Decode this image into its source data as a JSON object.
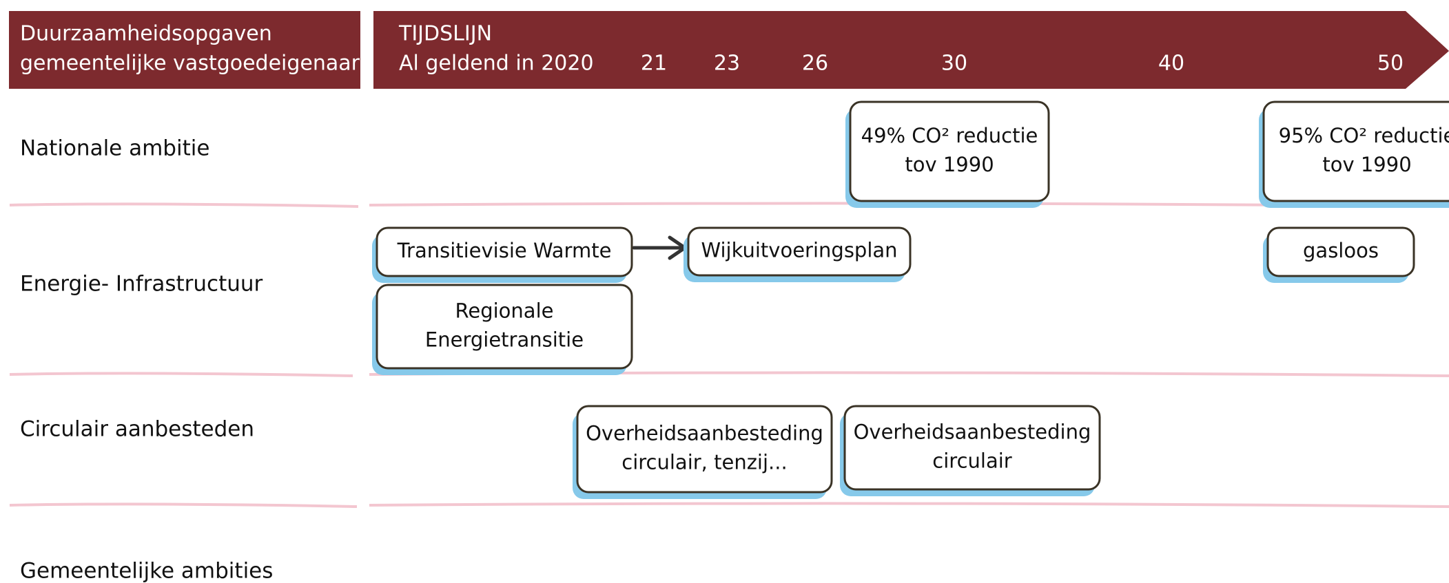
{
  "header": {
    "title_lines": [
      "Duurzaamheidsopgaven",
      "gemeentelijke vastgoedeigenaar"
    ],
    "timeline_label": "TIJDSLIJN",
    "start_label": "Al geldend in 2020",
    "years": [
      "21",
      "23",
      "26",
      "30",
      "40",
      "50"
    ]
  },
  "rows": [
    "Nationale ambitie",
    "Energie- Infrastructuur",
    "Circulair aanbesteden",
    "Gemeentelijke ambities"
  ],
  "boxes": [
    {
      "lines": [
        "49% CO² reductie",
        "tov 1990"
      ]
    },
    {
      "lines": [
        "95% CO² reductie",
        "tov 1990"
      ]
    },
    {
      "lines": [
        "Transitievisie Warmte"
      ]
    },
    {
      "lines": [
        "Wijkuitvoeringsplan"
      ]
    },
    {
      "lines": [
        "gasloos"
      ]
    },
    {
      "lines": [
        "Regionale",
        "Energietransitie"
      ]
    },
    {
      "lines": [
        "Overheidsaanbesteding",
        "circulair, tenzij..."
      ]
    },
    {
      "lines": [
        "Overheidsaanbesteding",
        "circulair"
      ]
    }
  ]
}
